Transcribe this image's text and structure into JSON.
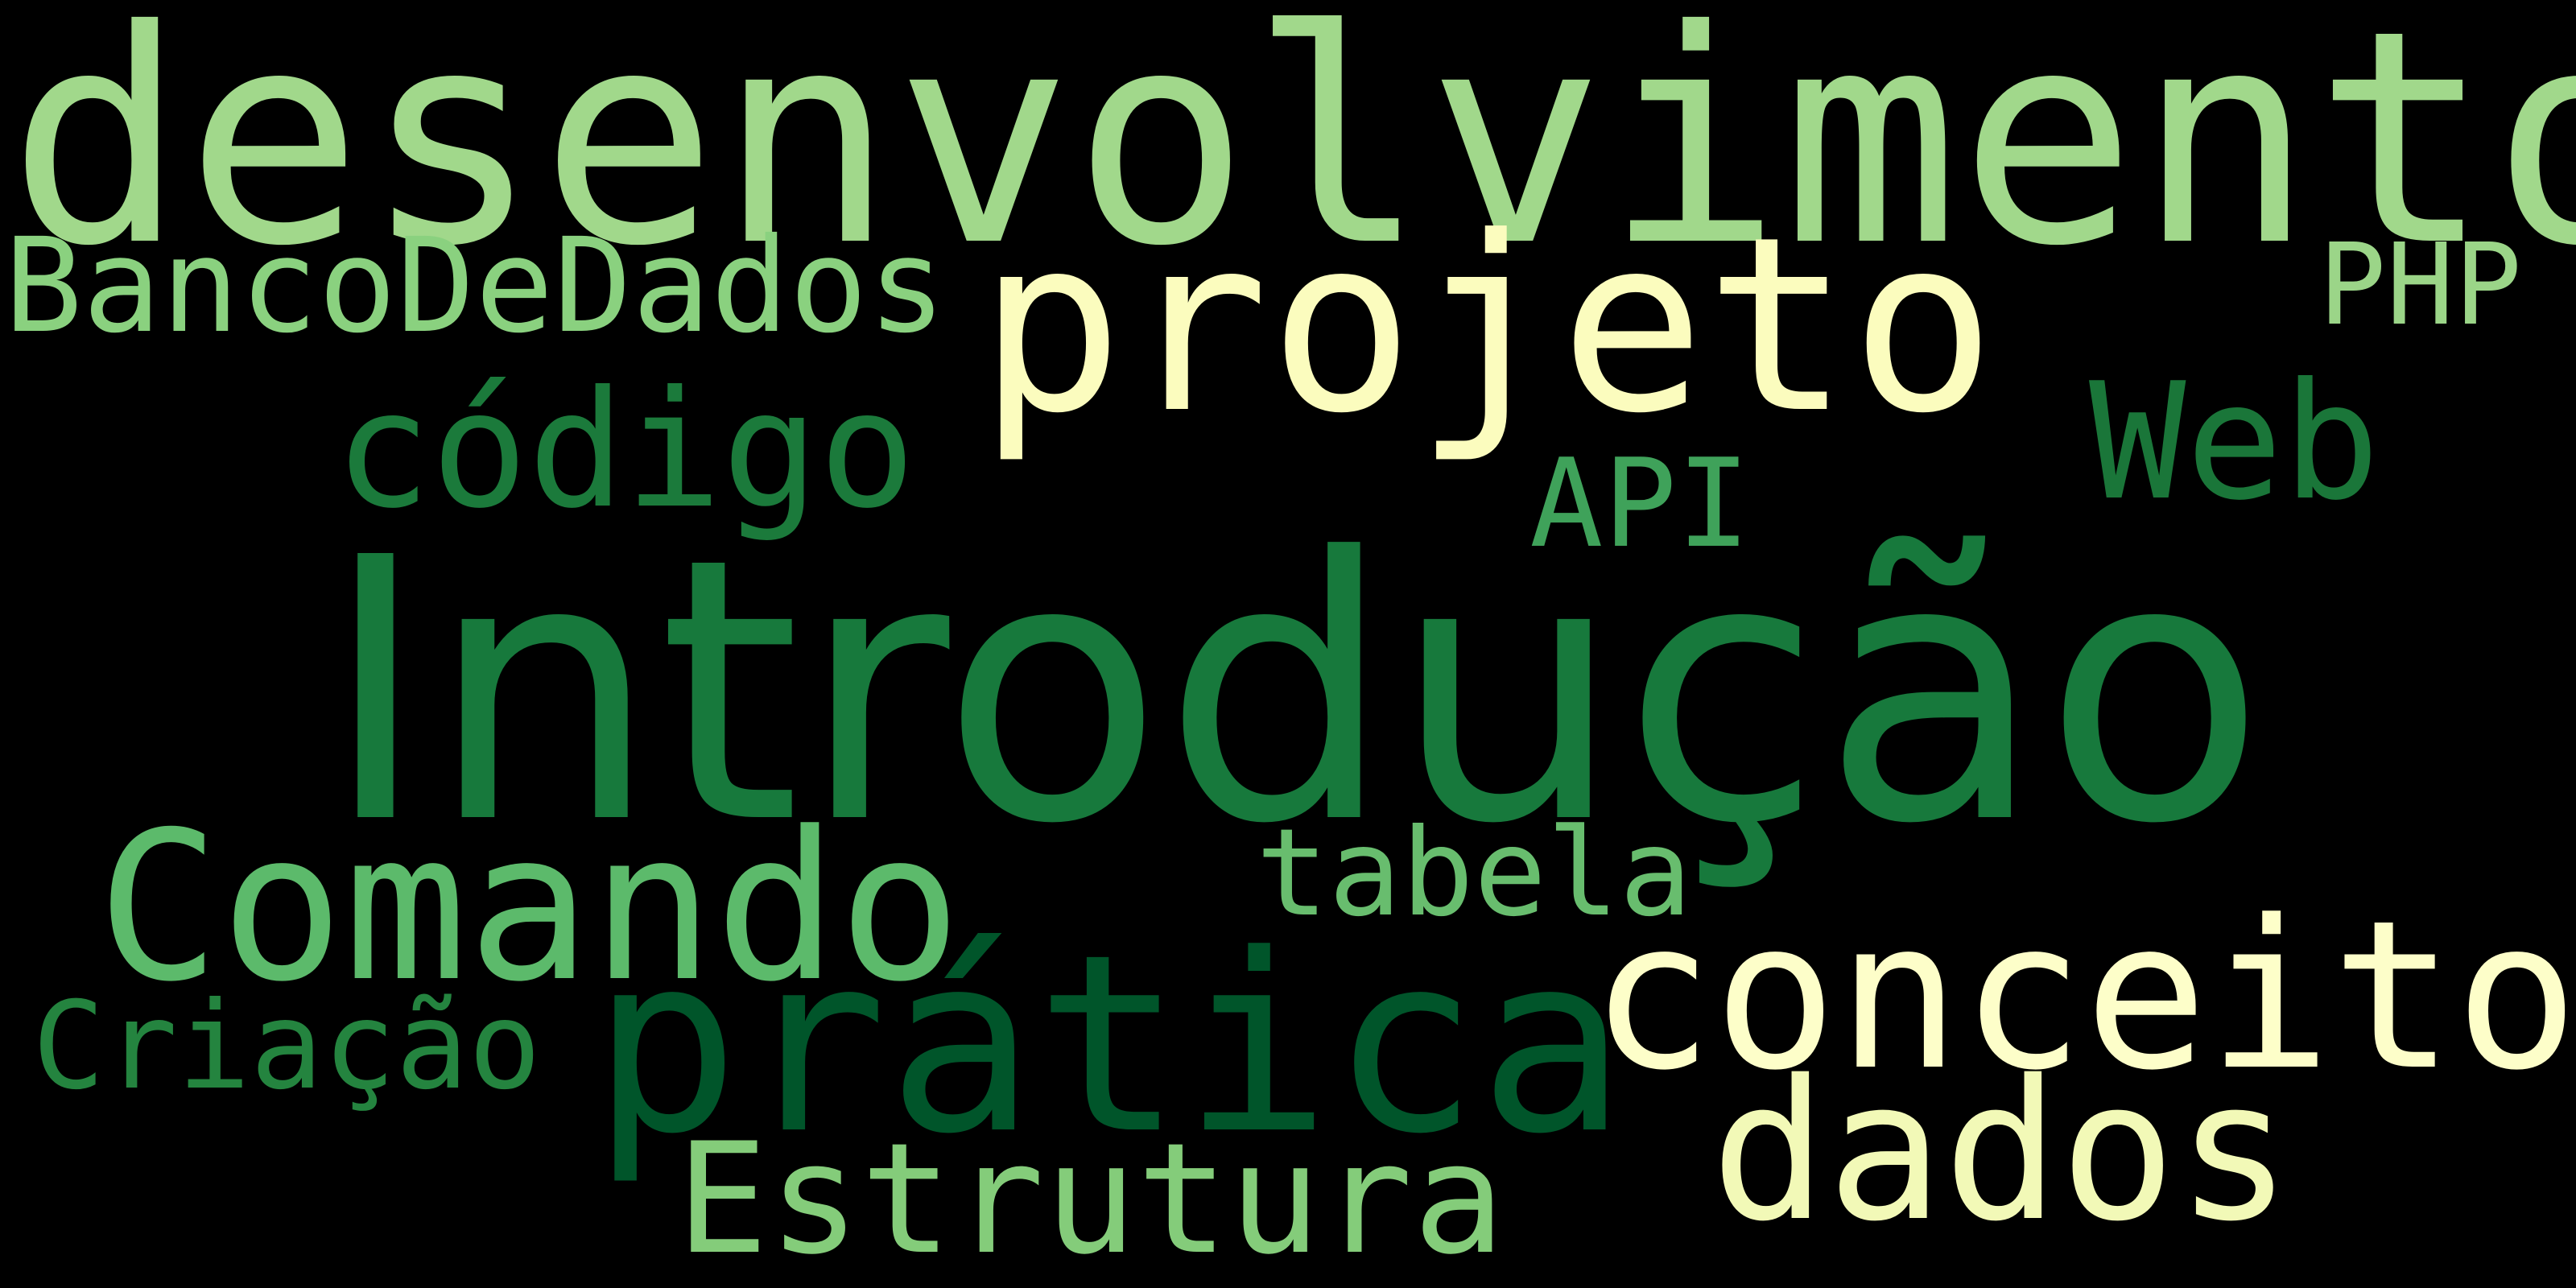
{
  "background_color": "#000000",
  "words": [
    {
      "text": "desenvolvimento",
      "color": "#a1d88b"
    },
    {
      "text": "Introdução",
      "color": "#17793c"
    },
    {
      "text": "projeto",
      "color": "#fbfcbe"
    },
    {
      "text": "prática",
      "color": "#00552a"
    },
    {
      "text": "conceito",
      "color": "#fdfec9"
    },
    {
      "text": "Comando",
      "color": "#5cba6b"
    },
    {
      "text": "dados",
      "color": "#f2f9b7"
    },
    {
      "text": "código",
      "color": "#1b7a3b"
    },
    {
      "text": "Web",
      "color": "#1a7639"
    },
    {
      "text": "Estrutura",
      "color": "#84cc7a"
    },
    {
      "text": "BancoDeDados",
      "color": "#8ad17f"
    },
    {
      "text": "tabela",
      "color": "#68bd6e"
    },
    {
      "text": "Criação",
      "color": "#24843f"
    },
    {
      "text": "API",
      "color": "#3fa25a"
    },
    {
      "text": "PHP",
      "color": "#9bd588"
    }
  ]
}
